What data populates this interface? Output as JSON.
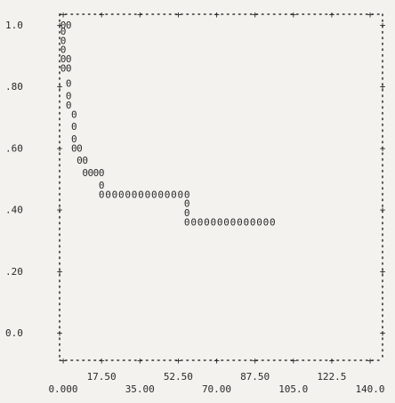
{
  "chart_data": {
    "type": "scatter",
    "marker": "0",
    "y_tick_labels": [
      "1.0",
      ".80",
      ".60",
      ".40",
      ".20",
      "0.0"
    ],
    "y_tick_values": [
      1.0,
      0.8,
      0.6,
      0.4,
      0.2,
      0.0
    ],
    "x_tick_labels_upper": [
      "17.50",
      "52.50",
      "87.50",
      "122.5"
    ],
    "x_tick_values_upper": [
      17.5,
      52.5,
      87.5,
      122.5
    ],
    "x_tick_labels_lower": [
      "0.000",
      "35.00",
      "70.00",
      "105.0",
      "140.0"
    ],
    "x_tick_values_lower": [
      0,
      35,
      70,
      105,
      140
    ],
    "xlim": [
      0,
      140
    ],
    "ylim": [
      0,
      1.0
    ],
    "points": [
      {
        "x": 0.0,
        "y": 1.0
      },
      {
        "x": 2.5,
        "y": 1.0
      },
      {
        "x": 0.0,
        "y": 0.98
      },
      {
        "x": 0.0,
        "y": 0.95
      },
      {
        "x": 0.0,
        "y": 0.92
      },
      {
        "x": 0.0,
        "y": 0.89
      },
      {
        "x": 2.5,
        "y": 0.89
      },
      {
        "x": 0.0,
        "y": 0.86
      },
      {
        "x": 2.5,
        "y": 0.86
      },
      {
        "x": 2.5,
        "y": 0.81
      },
      {
        "x": 2.5,
        "y": 0.77
      },
      {
        "x": 2.5,
        "y": 0.74
      },
      {
        "x": 5.0,
        "y": 0.71
      },
      {
        "x": 5.0,
        "y": 0.67
      },
      {
        "x": 5.0,
        "y": 0.63
      },
      {
        "x": 5.0,
        "y": 0.6
      },
      {
        "x": 7.5,
        "y": 0.6
      },
      {
        "x": 7.5,
        "y": 0.56
      },
      {
        "x": 10.0,
        "y": 0.56
      },
      {
        "x": 10.0,
        "y": 0.52
      },
      {
        "x": 12.5,
        "y": 0.52
      },
      {
        "x": 15.0,
        "y": 0.52
      },
      {
        "x": 17.5,
        "y": 0.52
      },
      {
        "x": 17.5,
        "y": 0.48
      },
      {
        "x": 17.5,
        "y": 0.45
      },
      {
        "x": 20.5,
        "y": 0.45
      },
      {
        "x": 23.5,
        "y": 0.45
      },
      {
        "x": 26.5,
        "y": 0.45
      },
      {
        "x": 29.5,
        "y": 0.45
      },
      {
        "x": 32.5,
        "y": 0.45
      },
      {
        "x": 35.5,
        "y": 0.45
      },
      {
        "x": 38.5,
        "y": 0.45
      },
      {
        "x": 41.5,
        "y": 0.45
      },
      {
        "x": 44.5,
        "y": 0.45
      },
      {
        "x": 47.5,
        "y": 0.45
      },
      {
        "x": 50.5,
        "y": 0.45
      },
      {
        "x": 53.5,
        "y": 0.45
      },
      {
        "x": 56.5,
        "y": 0.45
      },
      {
        "x": 56.5,
        "y": 0.42
      },
      {
        "x": 56.5,
        "y": 0.39
      },
      {
        "x": 56.5,
        "y": 0.36
      },
      {
        "x": 59.5,
        "y": 0.36
      },
      {
        "x": 62.5,
        "y": 0.36
      },
      {
        "x": 65.5,
        "y": 0.36
      },
      {
        "x": 68.5,
        "y": 0.36
      },
      {
        "x": 71.5,
        "y": 0.36
      },
      {
        "x": 74.5,
        "y": 0.36
      },
      {
        "x": 77.5,
        "y": 0.36
      },
      {
        "x": 80.5,
        "y": 0.36
      },
      {
        "x": 83.5,
        "y": 0.36
      },
      {
        "x": 86.5,
        "y": 0.36
      },
      {
        "x": 89.5,
        "y": 0.36
      },
      {
        "x": 92.5,
        "y": 0.36
      },
      {
        "x": 95.5,
        "y": 0.36
      }
    ]
  }
}
